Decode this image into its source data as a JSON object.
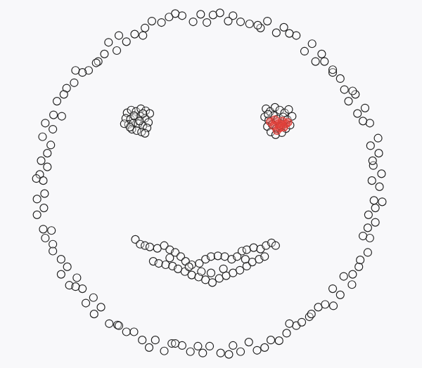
{
  "chart_data": {
    "type": "scatter",
    "xlim": [
      0,
      600
    ],
    "ylim": [
      0,
      524
    ],
    "grid": false,
    "tick_labels": false,
    "series": [
      {
        "color": "#222222",
        "marker": "open_circle",
        "x": [
          545,
          534,
          536,
          548,
          544,
          535,
          532,
          543,
          531,
          521,
          513,
          524,
          510,
          500,
          494,
          506,
          488,
          477,
          465,
          477,
          461,
          452,
          436,
          447,
          424,
          414,
          395,
          406,
          382,
          372,
          356,
          368,
          343,
          332,
          313,
          325,
          303,
          294,
          274,
          285,
          258,
          248,
          228,
          239,
          214,
          204,
          189,
          201,
          177,
          166,
          151,
          163,
          145,
          136,
          122,
          133,
          113,
          103,
          90,
          101,
          86,
          76,
          71,
          83,
          70,
          59,
          55,
          67,
          62,
          53,
          51,
          62,
          56,
          46,
          47,
          58,
          57,
          47,
          56,
          68,
          70,
          59,
          70,
          82,
          91,
          82,
          94,
          105,
          113,
          103,
          118,
          129,
          140,
          130,
          152,
          164,
          177,
          166,
          188,
          200,
          219,
          210,
          232,
          243,
          258,
          248,
          270,
          281,
          298,
          288,
          314,
          326,
          343,
          332,
          355,
          367,
          387,
          378,
          399,
          410,
          424,
          414,
          432,
          443,
          456,
          446,
          466,
          478,
          488,
          477,
          493,
          505,
          515,
          506,
          517,
          528,
          531,
          521,
          528,
          539,
          539,
          529,
          537,
          549,
          178,
          184,
          191,
          198,
          205,
          211,
          176,
          183,
          190,
          197,
          204,
          209,
          180,
          187,
          194,
          201,
          207,
          185,
          192,
          199,
          204,
          188,
          196,
          182,
          201,
          174,
          380,
          386,
          393,
          400,
          407,
          413,
          378,
          384,
          391,
          397,
          405,
          411,
          418,
          382,
          389,
          395,
          402,
          409,
          415,
          387,
          394,
          403,
          383,
          190,
          197,
          204,
          211,
          222,
          232,
          240,
          248,
          256,
          263,
          272,
          283,
          292,
          300,
          310,
          320,
          330,
          338,
          345,
          352,
          362,
          372,
          380,
          388,
          394,
          216,
          224,
          234,
          244,
          252,
          262,
          272,
          282,
          292,
          302,
          312,
          322,
          332,
          342,
          352,
          360,
          370,
          378,
          286,
          300,
          318,
          268,
          240,
          350
        ],
        "values": [
          258,
          267,
          289,
          277,
          307,
          296,
          318,
          329,
          351,
          354,
          365,
          373,
          393,
          383,
          400,
          398,
          416,
          425,
          441,
          429,
          452,
          441,
          456,
          467,
          479,
          482,
          483,
          491,
          500,
          490,
          496,
          494,
          499,
          508,
          512,
          500,
          509,
          498,
          499,
          510,
          508,
          511,
          498,
          506,
          500,
          490,
          481,
          479,
          470,
          479,
          469,
          457,
          452,
          441,
          428,
          439,
          425,
          428,
          402,
          410,
          393,
          383,
          363,
          361,
          342,
          351,
          331,
          319,
          307,
          296,
          276,
          287,
          267,
          270,
          240,
          248,
          227,
          217,
          196,
          194,
          174,
          183,
          164,
          152,
          141,
          130,
          114,
          125,
          109,
          112,
          88,
          96,
          82,
          72,
          58,
          56,
          46,
          55,
          46,
          34,
          34,
          23,
          18,
          29,
          26,
          29,
          17,
          25,
          25,
          15,
          15,
          13,
          17,
          26,
          31,
          19,
          34,
          23,
          33,
          44,
          55,
          58,
          60,
          68,
          82,
          72,
          86,
          84,
          100,
          109,
          127,
          115,
          141,
          130,
          151,
          162,
          183,
          186,
          198,
          206,
          227,
          217,
          238,
          236,
          366,
          370,
          368,
          372,
          369,
          365,
          358,
          357,
          360,
          361,
          358,
          352,
          349,
          351,
          350,
          347,
          344,
          342,
          340,
          338,
          336,
          362,
          354,
          345,
          365,
          350,
          372,
          368,
          374,
          370,
          366,
          371,
          360,
          355,
          362,
          357,
          360,
          356,
          361,
          346,
          349,
          343,
          346,
          343,
          348,
          338,
          334,
          337,
          364,
          181,
          174,
          172,
          170,
          168,
          172,
          166,
          162,
          156,
          149,
          144,
          146,
          152,
          156,
          157,
          156,
          152,
          156,
          164,
          166,
          169,
          167,
          172,
          176,
          172,
          149,
          146,
          144,
          142,
          138,
          134,
          129,
          126,
          122,
          118,
          124,
          128,
          132,
          136,
          142,
          148,
          152,
          156,
          134,
          132,
          138,
          141,
          154,
          152
        ]
      },
      {
        "color": "#e0403a",
        "marker": "circle",
        "x": [
          386,
          391,
          398,
          404,
          409,
          400,
          393,
          406,
          396,
          412,
          402
        ],
        "values": [
          353,
          347,
          350,
          354,
          350,
          344,
          356,
          345,
          340,
          352,
          349
        ]
      }
    ]
  }
}
